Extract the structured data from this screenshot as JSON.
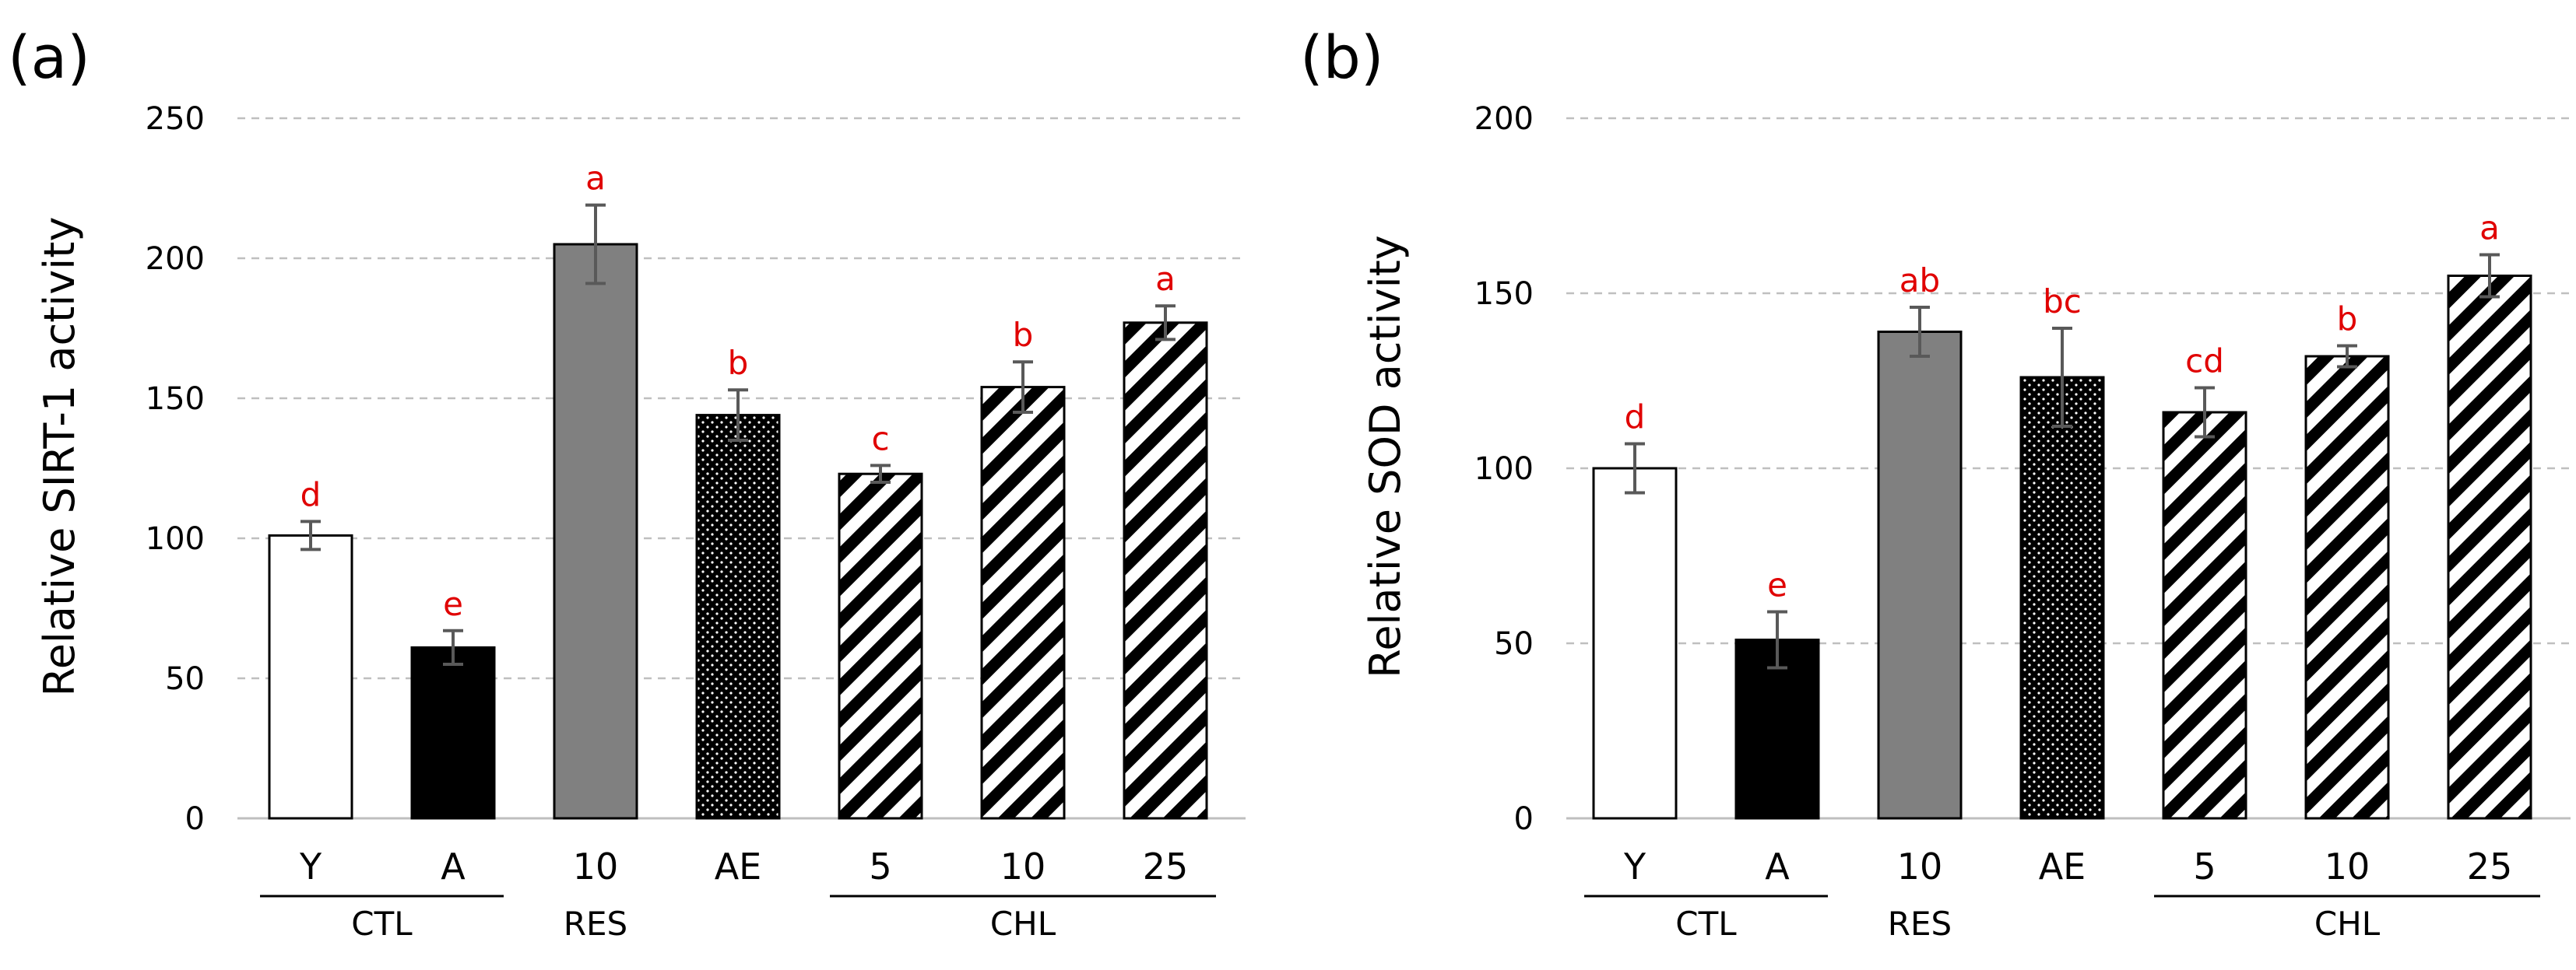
{
  "chart_data": [
    {
      "type": "bar",
      "panel": "(a)",
      "ylabel": "Relative SIRT-1 activity",
      "ylim": [
        0,
        250
      ],
      "yticks": [
        0,
        50,
        100,
        150,
        200,
        250
      ],
      "grid": true,
      "categories": [
        "Y",
        "A",
        "10",
        "AE",
        "5",
        "10",
        "25"
      ],
      "groups": [
        {
          "label": "CTL",
          "underline": true
        },
        {
          "label": "RES",
          "underline": false
        },
        {
          "label": "CHL",
          "underline": true
        }
      ],
      "values": [
        101,
        61,
        205,
        144,
        123,
        154,
        177
      ],
      "errors": [
        5,
        6,
        14,
        9,
        3,
        9,
        6
      ],
      "significance": [
        "d",
        "e",
        "a",
        "b",
        "c",
        "b",
        "a"
      ],
      "fills": [
        "white",
        "black",
        "gray",
        "dots",
        "stripes",
        "stripes",
        "stripes"
      ]
    },
    {
      "type": "bar",
      "panel": "(b)",
      "ylabel": "Relative SOD activity",
      "ylim": [
        0,
        200
      ],
      "yticks": [
        0,
        50,
        100,
        150,
        200
      ],
      "grid": true,
      "categories": [
        "Y",
        "A",
        "10",
        "AE",
        "5",
        "10",
        "25"
      ],
      "groups": [
        {
          "label": "CTL",
          "underline": true
        },
        {
          "label": "RES",
          "underline": false
        },
        {
          "label": "CHL",
          "underline": true
        }
      ],
      "values": [
        100,
        51,
        139,
        126,
        116,
        132,
        155
      ],
      "errors": [
        7,
        8,
        7,
        14,
        7,
        3,
        6
      ],
      "significance": [
        "d",
        "e",
        "ab",
        "bc",
        "cd",
        "b",
        "a"
      ],
      "fills": [
        "white",
        "black",
        "gray",
        "dots",
        "stripes",
        "stripes",
        "stripes"
      ]
    }
  ],
  "colors": {
    "gray_bar": "#808080",
    "significance": "#e00000",
    "grid": "#bfbfbf",
    "error_bar": "#595959"
  }
}
